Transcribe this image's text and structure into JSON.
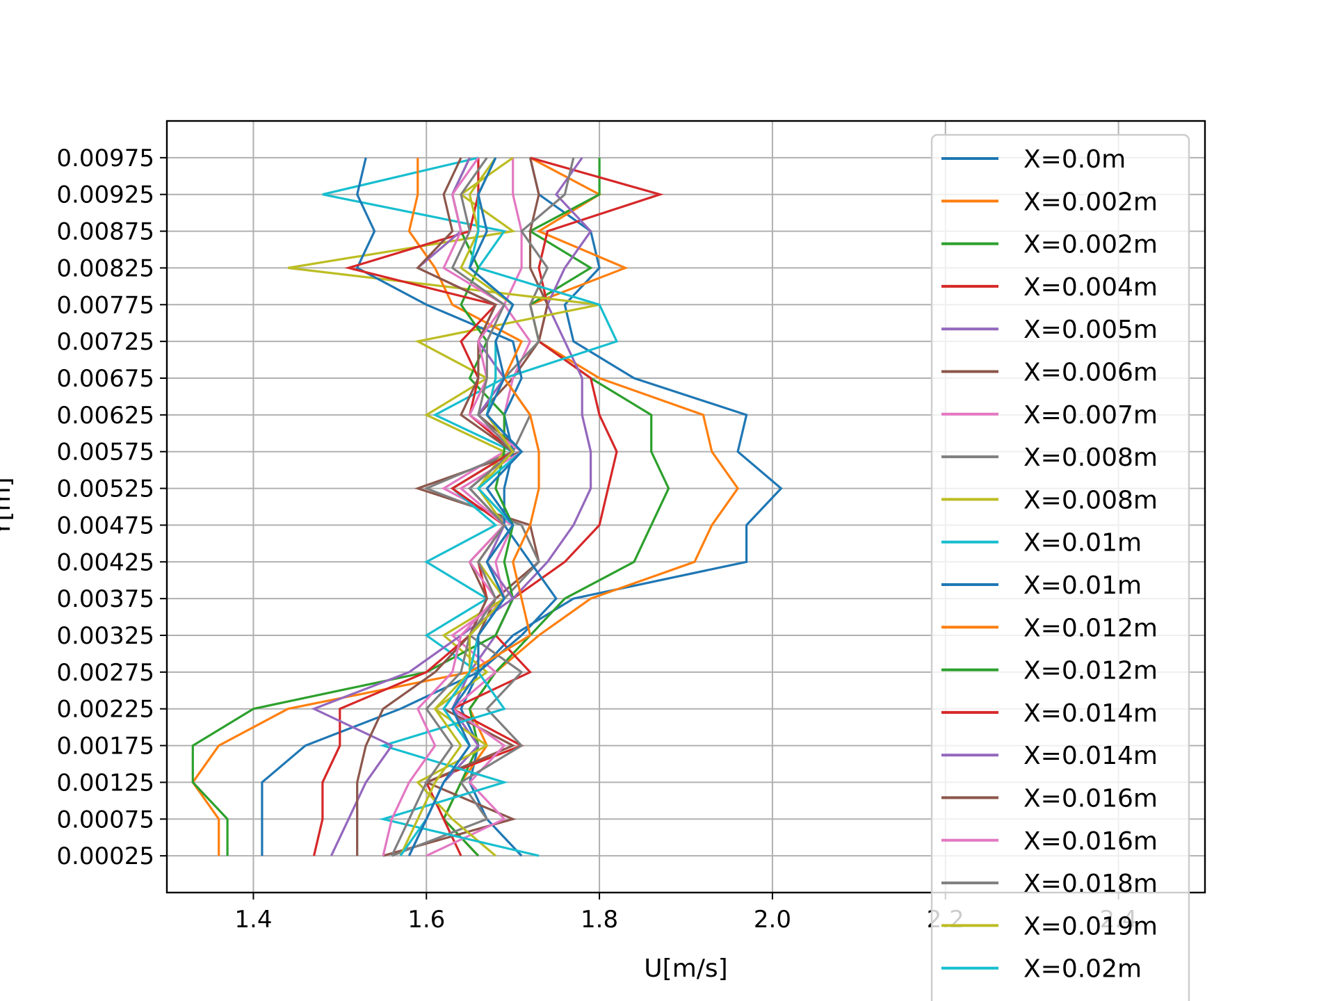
{
  "chart_data": {
    "type": "line",
    "title": "",
    "xlabel": "U[m/s]",
    "ylabel": "Y[m]",
    "xlim": [
      1.3,
      2.5
    ],
    "ylim": [
      -0.00025,
      0.01025
    ],
    "x_ticks": [
      1.4,
      1.6,
      1.8,
      2.0,
      2.2,
      2.4
    ],
    "x_tick_labels": [
      "1.4",
      "1.6",
      "1.8",
      "2.0",
      "2.2",
      "2.4"
    ],
    "y_ticks": [
      0.00025,
      0.00075,
      0.00125,
      0.00175,
      0.00225,
      0.00275,
      0.00325,
      0.00375,
      0.00425,
      0.00475,
      0.00525,
      0.00575,
      0.00625,
      0.00675,
      0.00725,
      0.00775,
      0.00825,
      0.00875,
      0.00925,
      0.00975
    ],
    "y_tick_labels": [
      "0.00025",
      "0.00075",
      "0.00125",
      "0.00175",
      "0.00225",
      "0.00275",
      "0.00325",
      "0.00375",
      "0.00425",
      "0.00475",
      "0.00525",
      "0.00575",
      "0.00625",
      "0.00675",
      "0.00725",
      "0.00775",
      "0.00825",
      "0.00875",
      "0.00925",
      "0.00975"
    ],
    "grid": true,
    "legend_position": "top-right",
    "y": [
      0.00025,
      0.00075,
      0.00125,
      0.00175,
      0.00225,
      0.00275,
      0.00325,
      0.00375,
      0.00425,
      0.00475,
      0.00525,
      0.00575,
      0.00625,
      0.00675,
      0.00725,
      0.00775,
      0.00825,
      0.00875,
      0.00925,
      0.00975
    ],
    "series": [
      {
        "name": "X=0.0m",
        "color": "#1f77b4",
        "values": [
          1.71,
          1.67,
          1.65,
          1.66,
          1.64,
          1.66,
          1.7,
          1.77,
          1.97,
          1.97,
          2.01,
          1.96,
          1.97,
          1.84,
          1.77,
          1.76,
          1.8,
          1.79,
          1.73,
          1.72
        ]
      },
      {
        "name": "X=0.002m",
        "color": "#ff7f0e",
        "values": [
          1.66,
          1.62,
          1.64,
          1.67,
          1.65,
          1.68,
          1.73,
          1.79,
          1.91,
          1.93,
          1.96,
          1.93,
          1.92,
          1.8,
          1.73,
          1.72,
          1.83,
          1.73,
          1.8,
          1.72
        ]
      },
      {
        "name": "X=0.002m",
        "color": "#2ca02c",
        "values": [
          1.66,
          1.62,
          1.64,
          1.66,
          1.65,
          1.68,
          1.72,
          1.76,
          1.84,
          1.86,
          1.88,
          1.86,
          1.86,
          1.79,
          1.73,
          1.72,
          1.79,
          1.72,
          1.8,
          1.8
        ]
      },
      {
        "name": "X=0.004m",
        "color": "#d62728",
        "values": [
          1.64,
          1.62,
          1.6,
          1.71,
          1.63,
          1.72,
          1.68,
          1.7,
          1.76,
          1.8,
          1.81,
          1.82,
          1.8,
          1.79,
          1.73,
          1.74,
          1.73,
          1.74,
          1.87,
          1.72
        ]
      },
      {
        "name": "X=0.005m",
        "color": "#9467bd",
        "values": [
          1.58,
          1.6,
          1.62,
          1.66,
          1.63,
          1.65,
          1.68,
          1.7,
          1.74,
          1.77,
          1.79,
          1.79,
          1.78,
          1.78,
          1.76,
          1.74,
          1.76,
          1.79,
          1.75,
          1.78
        ]
      },
      {
        "name": "X=0.006m",
        "color": "#8c564b",
        "values": [
          1.55,
          1.7,
          1.6,
          1.7,
          1.62,
          1.65,
          1.66,
          1.68,
          1.73,
          1.72,
          1.59,
          1.71,
          1.66,
          1.7,
          1.73,
          1.74,
          1.72,
          1.72,
          1.73,
          1.72
        ]
      },
      {
        "name": "X=0.007m",
        "color": "#e377c2",
        "values": [
          1.6,
          1.69,
          1.65,
          1.69,
          1.63,
          1.68,
          1.63,
          1.69,
          1.68,
          1.7,
          1.62,
          1.69,
          1.69,
          1.7,
          1.72,
          1.69,
          1.71,
          1.71,
          1.7,
          1.7
        ]
      },
      {
        "name": "X=0.008m",
        "color": "#7f7f7f",
        "values": [
          1.56,
          1.67,
          1.64,
          1.71,
          1.67,
          1.71,
          1.65,
          1.69,
          1.73,
          1.71,
          1.6,
          1.7,
          1.72,
          1.69,
          1.73,
          1.72,
          1.74,
          1.71,
          1.76,
          1.77
        ]
      },
      {
        "name": "X=0.008m",
        "color": "#bcbd22",
        "values": [
          1.68,
          1.63,
          1.59,
          1.67,
          1.61,
          1.67,
          1.62,
          1.69,
          1.66,
          1.69,
          1.66,
          1.69,
          1.6,
          1.67,
          1.59,
          1.8,
          1.44,
          1.7,
          1.64,
          1.7
        ]
      },
      {
        "name": "X=0.01m",
        "color": "#17becf",
        "values": [
          1.73,
          1.55,
          1.69,
          1.55,
          1.69,
          1.66,
          1.6,
          1.67,
          1.6,
          1.68,
          1.63,
          1.7,
          1.61,
          1.69,
          1.82,
          1.8,
          1.66,
          1.69,
          1.48,
          1.66
        ]
      },
      {
        "name": "X=0.01m",
        "color": "#1f77b4",
        "values": [
          1.41,
          1.41,
          1.41,
          1.46,
          1.57,
          1.66,
          1.71,
          1.75,
          1.72,
          1.69,
          1.69,
          1.7,
          1.69,
          1.71,
          1.7,
          1.6,
          1.52,
          1.54,
          1.52,
          1.53
        ]
      },
      {
        "name": "X=0.012m",
        "color": "#ff7f0e",
        "values": [
          1.36,
          1.36,
          1.33,
          1.36,
          1.44,
          1.65,
          1.72,
          1.71,
          1.7,
          1.72,
          1.73,
          1.73,
          1.72,
          1.69,
          1.71,
          1.63,
          1.61,
          1.58,
          1.59,
          1.59
        ]
      },
      {
        "name": "X=0.012m",
        "color": "#2ca02c",
        "values": [
          1.37,
          1.37,
          1.33,
          1.33,
          1.4,
          1.6,
          1.68,
          1.7,
          1.69,
          1.7,
          1.68,
          1.69,
          1.69,
          1.65,
          1.67,
          1.64,
          1.66,
          1.64,
          1.63,
          1.65
        ]
      },
      {
        "name": "X=0.014m",
        "color": "#d62728",
        "values": [
          1.47,
          1.48,
          1.48,
          1.5,
          1.5,
          1.6,
          1.65,
          1.67,
          1.66,
          1.69,
          1.63,
          1.7,
          1.65,
          1.66,
          1.64,
          1.68,
          1.51,
          1.65,
          1.66,
          1.66
        ]
      },
      {
        "name": "X=0.014m",
        "color": "#9467bd",
        "values": [
          1.49,
          1.51,
          1.53,
          1.56,
          1.47,
          1.58,
          1.64,
          1.7,
          1.67,
          1.69,
          1.65,
          1.7,
          1.66,
          1.69,
          1.66,
          1.68,
          1.59,
          1.64,
          1.63,
          1.65
        ]
      },
      {
        "name": "X=0.016m",
        "color": "#8c564b",
        "values": [
          1.52,
          1.52,
          1.52,
          1.53,
          1.55,
          1.61,
          1.65,
          1.67,
          1.65,
          1.69,
          1.65,
          1.7,
          1.64,
          1.66,
          1.66,
          1.68,
          1.59,
          1.63,
          1.62,
          1.64
        ]
      },
      {
        "name": "X=0.016m",
        "color": "#e377c2",
        "values": [
          1.55,
          1.56,
          1.58,
          1.61,
          1.59,
          1.63,
          1.64,
          1.68,
          1.65,
          1.69,
          1.64,
          1.71,
          1.65,
          1.67,
          1.66,
          1.69,
          1.62,
          1.64,
          1.63,
          1.66
        ]
      },
      {
        "name": "X=0.018m",
        "color": "#7f7f7f",
        "values": [
          1.56,
          1.58,
          1.6,
          1.63,
          1.6,
          1.64,
          1.65,
          1.68,
          1.66,
          1.69,
          1.65,
          1.7,
          1.66,
          1.67,
          1.67,
          1.69,
          1.63,
          1.65,
          1.64,
          1.67
        ]
      },
      {
        "name": "X=0.019m",
        "color": "#bcbd22",
        "values": [
          1.57,
          1.59,
          1.61,
          1.64,
          1.61,
          1.65,
          1.65,
          1.69,
          1.67,
          1.7,
          1.66,
          1.7,
          1.67,
          1.68,
          1.68,
          1.7,
          1.64,
          1.66,
          1.65,
          1.68
        ]
      },
      {
        "name": "X=0.02m",
        "color": "#17becf",
        "values": [
          1.57,
          1.6,
          1.62,
          1.65,
          1.62,
          1.65,
          1.66,
          1.69,
          1.67,
          1.7,
          1.66,
          1.71,
          1.67,
          1.68,
          1.68,
          1.7,
          1.65,
          1.66,
          1.66,
          1.68
        ]
      },
      {
        "name": "X=0.02m",
        "color": "#1f77b4",
        "values": [
          1.58,
          1.6,
          1.62,
          1.65,
          1.63,
          1.66,
          1.66,
          1.69,
          1.67,
          1.7,
          1.67,
          1.71,
          1.67,
          1.69,
          1.68,
          1.7,
          1.65,
          1.67,
          1.66,
          1.68
        ]
      }
    ]
  }
}
